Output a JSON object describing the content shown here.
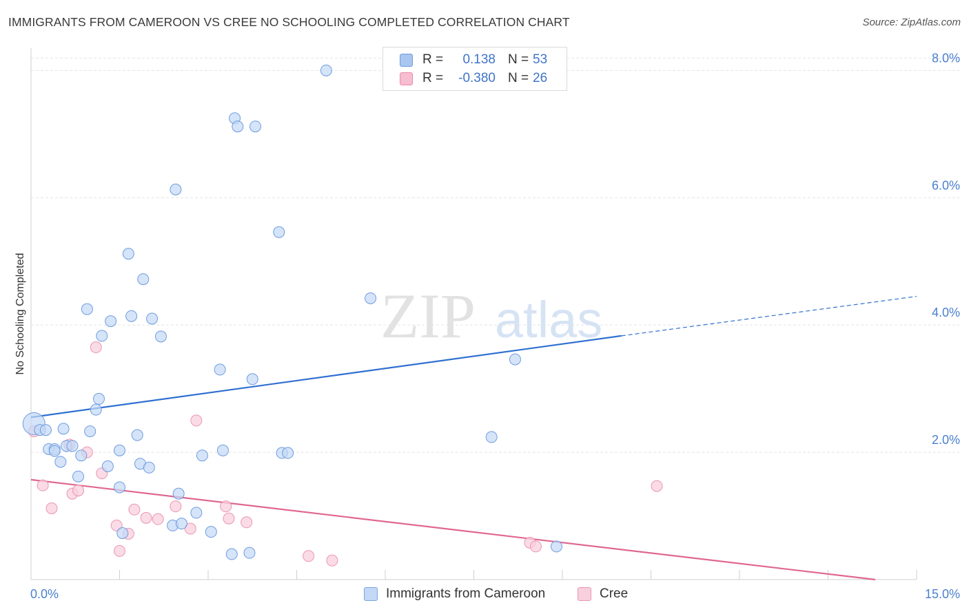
{
  "header": {
    "title": "IMMIGRANTS FROM CAMEROON VS CREE NO SCHOOLING COMPLETED CORRELATION CHART",
    "source": "Source: ZipAtlas.com"
  },
  "watermark": {
    "text_zip": "ZIP",
    "text_atlas": "atlas"
  },
  "legend_top": {
    "rows": [
      {
        "r_label": "R =",
        "r_value": "0.138",
        "n_label": "N =",
        "n_value": "53",
        "color": "#a9c6f0",
        "border": "#6d9be0"
      },
      {
        "r_label": "R =",
        "r_value": "-0.380",
        "n_label": "N =",
        "n_value": "26",
        "color": "#f7bdd0",
        "border": "#e88aaa"
      }
    ]
  },
  "legend_bottom": {
    "items": [
      {
        "label": "Immigrants from Cameroon",
        "color": "#c3d8f5",
        "border": "#7aa3e0"
      },
      {
        "label": "Cree",
        "color": "#f9cfdd",
        "border": "#e896b2"
      }
    ]
  },
  "chart_data": {
    "type": "scatter",
    "title": "IMMIGRANTS FROM CAMEROON VS CREE NO SCHOOLING COMPLETED CORRELATION CHART",
    "xlabel": "",
    "ylabel": "No Schooling Completed",
    "xlim": [
      0,
      15
    ],
    "ylim": [
      0,
      8.35
    ],
    "x_tick_labels": [
      {
        "value": 0,
        "label": "0.0%"
      },
      {
        "value": 15,
        "label": "15.0%"
      }
    ],
    "y_tick_labels": [
      {
        "value": 2,
        "label": "2.0%"
      },
      {
        "value": 4,
        "label": "4.0%"
      },
      {
        "value": 6,
        "label": "6.0%"
      },
      {
        "value": 8,
        "label": "8.0%"
      }
    ],
    "x_minor_ticks": [
      1.5,
      3,
      4.5,
      6,
      7.5,
      9,
      10.5,
      12,
      13.5,
      15
    ],
    "grid": true,
    "legend_position": "top-center",
    "colors": {
      "blue": "#6d9be0",
      "blue_fill": "#c3d8f5",
      "blue_line": "#2f6fd1",
      "pink": "#e896b2",
      "pink_fill": "#f9cfdd",
      "pink_line": "#e0668f"
    },
    "series": [
      {
        "name": "Immigrants from Cameroon",
        "points": [
          [
            0.05,
            2.45
          ],
          [
            0.15,
            2.35
          ],
          [
            0.25,
            2.35
          ],
          [
            0.3,
            2.05
          ],
          [
            0.4,
            2.05
          ],
          [
            0.4,
            2.02
          ],
          [
            0.5,
            1.85
          ],
          [
            0.55,
            2.37
          ],
          [
            0.6,
            2.1
          ],
          [
            0.7,
            2.1
          ],
          [
            0.8,
            1.62
          ],
          [
            0.85,
            1.95
          ],
          [
            0.95,
            4.25
          ],
          [
            1.0,
            2.33
          ],
          [
            1.1,
            2.67
          ],
          [
            1.15,
            2.84
          ],
          [
            1.2,
            3.83
          ],
          [
            1.3,
            1.78
          ],
          [
            1.35,
            4.06
          ],
          [
            1.5,
            2.03
          ],
          [
            1.5,
            1.45
          ],
          [
            1.55,
            0.73
          ],
          [
            1.65,
            5.12
          ],
          [
            1.7,
            4.14
          ],
          [
            1.8,
            2.27
          ],
          [
            1.85,
            1.82
          ],
          [
            1.9,
            4.72
          ],
          [
            2.0,
            1.76
          ],
          [
            2.05,
            4.1
          ],
          [
            2.2,
            3.82
          ],
          [
            2.4,
            0.85
          ],
          [
            2.45,
            6.13
          ],
          [
            2.5,
            1.35
          ],
          [
            2.55,
            0.88
          ],
          [
            2.8,
            1.05
          ],
          [
            2.9,
            1.95
          ],
          [
            3.05,
            0.75
          ],
          [
            3.2,
            3.3
          ],
          [
            3.25,
            2.03
          ],
          [
            3.4,
            0.4
          ],
          [
            3.45,
            7.25
          ],
          [
            3.5,
            7.12
          ],
          [
            3.7,
            0.42
          ],
          [
            3.75,
            3.15
          ],
          [
            3.8,
            7.12
          ],
          [
            4.2,
            5.46
          ],
          [
            4.25,
            1.99
          ],
          [
            4.35,
            1.99
          ],
          [
            5.0,
            8.0
          ],
          [
            5.75,
            4.42
          ],
          [
            7.8,
            2.24
          ],
          [
            8.2,
            3.46
          ],
          [
            8.9,
            0.52
          ]
        ],
        "trend": {
          "x": [
            0,
            10
          ],
          "y": [
            2.55,
            3.83
          ],
          "extended_x": [
            10,
            15
          ],
          "extended_y": [
            3.83,
            4.45
          ]
        }
      },
      {
        "name": "Cree",
        "points": [
          [
            0.05,
            2.33
          ],
          [
            0.2,
            1.48
          ],
          [
            0.35,
            1.12
          ],
          [
            0.65,
            2.12
          ],
          [
            0.7,
            1.35
          ],
          [
            0.8,
            1.4
          ],
          [
            0.95,
            2.0
          ],
          [
            1.1,
            3.65
          ],
          [
            1.2,
            1.67
          ],
          [
            1.45,
            0.85
          ],
          [
            1.5,
            0.45
          ],
          [
            1.65,
            0.72
          ],
          [
            1.75,
            1.1
          ],
          [
            1.95,
            0.97
          ],
          [
            2.15,
            0.95
          ],
          [
            2.45,
            1.15
          ],
          [
            2.7,
            0.8
          ],
          [
            2.8,
            2.5
          ],
          [
            3.3,
            1.15
          ],
          [
            3.35,
            0.96
          ],
          [
            3.65,
            0.9
          ],
          [
            4.7,
            0.37
          ],
          [
            5.1,
            0.3
          ],
          [
            8.45,
            0.58
          ],
          [
            8.55,
            0.52
          ],
          [
            10.6,
            1.47
          ]
        ],
        "trend": {
          "x": [
            0,
            14.3
          ],
          "y": [
            1.57,
            0.0
          ]
        }
      }
    ]
  }
}
